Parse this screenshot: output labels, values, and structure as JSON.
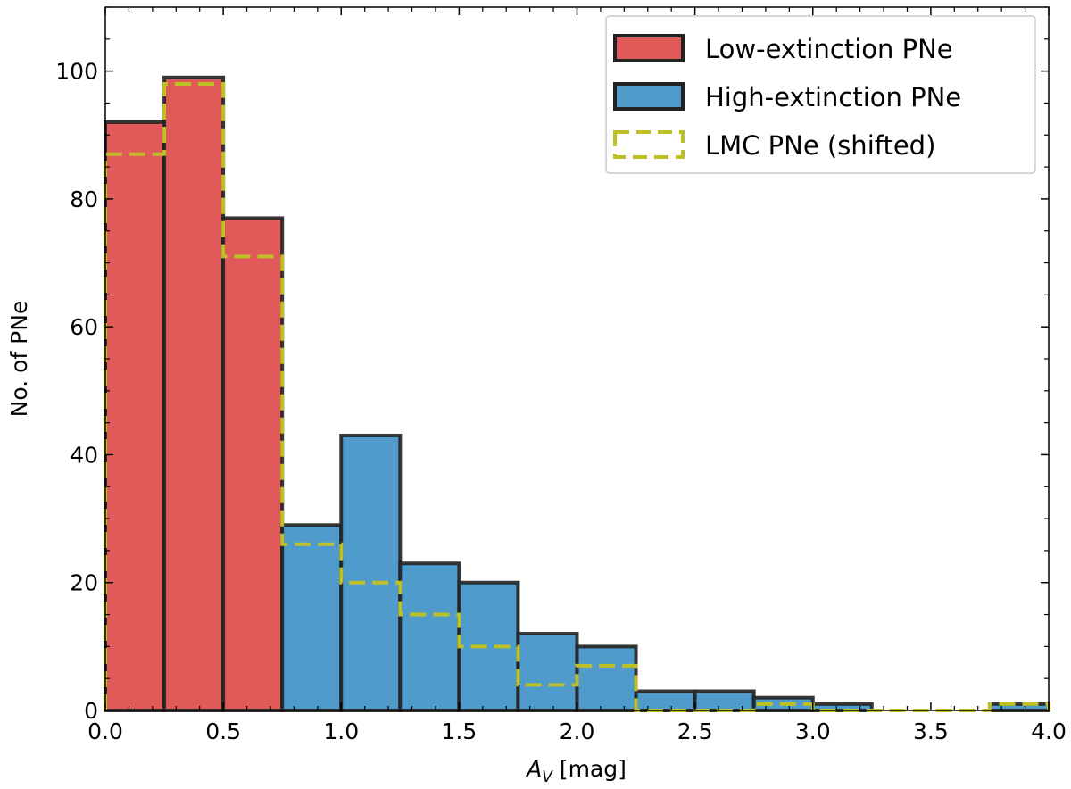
{
  "chart_data": {
    "type": "bar",
    "xlabel_symbol": "A",
    "xlabel_subscript": "V",
    "xlabel_unit": " [mag]",
    "ylabel": "No. of PNe",
    "xlim": [
      0,
      4
    ],
    "ylim": [
      0,
      110
    ],
    "xticks": [
      0.0,
      0.5,
      1.0,
      1.5,
      2.0,
      2.5,
      3.0,
      3.5,
      4.0
    ],
    "xtick_labels": [
      "0.0",
      "0.5",
      "1.0",
      "1.5",
      "2.0",
      "2.5",
      "3.0",
      "3.5",
      "4.0"
    ],
    "yticks": [
      0,
      20,
      40,
      60,
      80,
      100
    ],
    "ytick_labels": [
      "0",
      "20",
      "40",
      "60",
      "80",
      "100"
    ],
    "bin_edges": [
      0,
      0.25,
      0.5,
      0.75,
      1.0,
      1.25,
      1.5,
      1.75,
      2.0,
      2.25,
      2.5,
      2.75,
      3.0,
      3.25,
      3.5,
      3.75,
      4.0
    ],
    "legend_position": "top-right",
    "series": [
      {
        "name": "Low-extinction PNe",
        "style": "filled",
        "color": "#e05a5a",
        "edge_color": "#222222",
        "bins": [
          [
            0,
            0.25,
            92
          ],
          [
            0.25,
            0.5,
            99
          ],
          [
            0.5,
            0.75,
            77
          ]
        ]
      },
      {
        "name": "High-extinction PNe",
        "style": "filled",
        "color": "#4f9bcc",
        "edge_color": "#222222",
        "bins": [
          [
            0.75,
            1.0,
            29
          ],
          [
            1.0,
            1.25,
            43
          ],
          [
            1.25,
            1.5,
            23
          ],
          [
            1.5,
            1.75,
            20
          ],
          [
            1.75,
            2.0,
            12
          ],
          [
            2.0,
            2.25,
            10
          ],
          [
            2.25,
            2.5,
            3
          ],
          [
            2.5,
            2.75,
            3
          ],
          [
            2.75,
            3.0,
            2
          ],
          [
            3.0,
            3.25,
            1
          ],
          [
            3.75,
            4.0,
            1
          ]
        ]
      },
      {
        "name": "LMC PNe (shifted)",
        "style": "dashed-step",
        "color": "#bfbf26",
        "values": [
          87,
          98,
          71,
          26,
          20,
          15,
          10,
          4,
          7,
          0,
          0,
          1,
          0,
          0,
          0,
          1
        ]
      }
    ]
  }
}
